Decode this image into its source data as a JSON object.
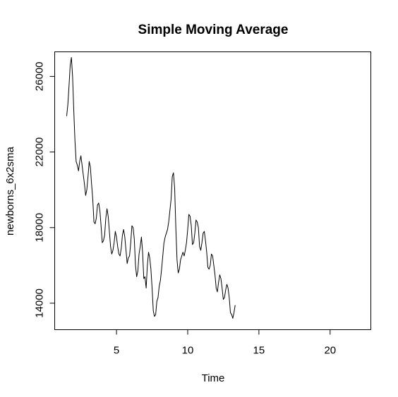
{
  "chart_data": {
    "type": "line",
    "title": "Simple Moving Average",
    "xlabel": "Time",
    "ylabel": "newborns_6x2sma",
    "xlim": [
      0.66,
      22.86
    ],
    "ylim": [
      12600,
      27300
    ],
    "x_ticks": [
      5,
      10,
      15,
      20
    ],
    "y_ticks": [
      14000,
      18000,
      22000,
      26000
    ],
    "grid": false,
    "legend": "none",
    "series": [
      {
        "color": "#000000",
        "start": 1.5,
        "step": 0.0833333,
        "values": [
          23900,
          24500,
          25500,
          26600,
          27000,
          26000,
          24200,
          22600,
          21500,
          21300,
          21000,
          21500,
          21800,
          21300,
          20800,
          20300,
          19700,
          20000,
          20700,
          21500,
          21200,
          20300,
          19500,
          18300,
          18200,
          18500,
          19200,
          19300,
          18900,
          18100,
          17200,
          17300,
          17600,
          18500,
          19000,
          18600,
          17800,
          17000,
          16600,
          16800,
          17200,
          17800,
          17500,
          17000,
          16600,
          16500,
          16900,
          17600,
          17900,
          17500,
          16800,
          16100,
          16400,
          16500,
          17200,
          18100,
          18000,
          17400,
          16000,
          15400,
          15700,
          16600,
          17000,
          17500,
          16700,
          15300,
          15400,
          14800,
          16000,
          16700,
          16400,
          15800,
          14800,
          13600,
          13300,
          13400,
          14100,
          14300,
          14900,
          15200,
          15800,
          16500,
          17200,
          17500,
          17700,
          17900,
          18300,
          18900,
          19500,
          20700,
          20900,
          20100,
          18000,
          16300,
          15600,
          15800,
          16300,
          16500,
          16700,
          16500,
          16800,
          17200,
          17900,
          18700,
          18600,
          18100,
          17100,
          17200,
          17700,
          18400,
          18300,
          18000,
          17000,
          16800,
          17200,
          17700,
          17800,
          17300,
          16700,
          15900,
          15800,
          16000,
          16600,
          16500,
          16000,
          15500,
          14800,
          14600,
          15100,
          15500,
          15300,
          14800,
          14200,
          14300,
          14700,
          15000,
          14800,
          14300,
          13500,
          13400,
          13200,
          13500,
          13900
        ]
      }
    ]
  }
}
